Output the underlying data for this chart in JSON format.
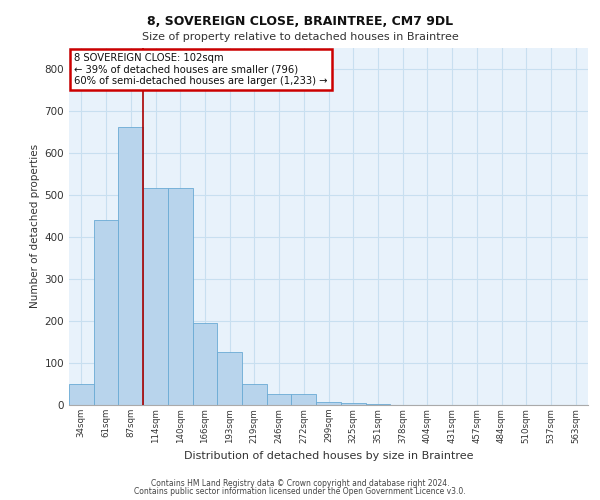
{
  "title1": "8, SOVEREIGN CLOSE, BRAINTREE, CM7 9DL",
  "title2": "Size of property relative to detached houses in Braintree",
  "xlabel": "Distribution of detached houses by size in Braintree",
  "ylabel": "Number of detached properties",
  "categories": [
    "34sqm",
    "61sqm",
    "87sqm",
    "114sqm",
    "140sqm",
    "166sqm",
    "193sqm",
    "219sqm",
    "246sqm",
    "272sqm",
    "299sqm",
    "325sqm",
    "351sqm",
    "378sqm",
    "404sqm",
    "431sqm",
    "457sqm",
    "484sqm",
    "510sqm",
    "537sqm",
    "563sqm"
  ],
  "values": [
    50,
    440,
    660,
    515,
    515,
    195,
    125,
    50,
    27,
    27,
    8,
    5,
    3,
    0,
    0,
    0,
    0,
    0,
    0,
    0,
    0
  ],
  "bar_color": "#b8d4ec",
  "bar_edge_color": "#6aaad4",
  "grid_color": "#c8dff0",
  "background_color": "#e8f2fb",
  "vline_x": 2.5,
  "vline_color": "#aa0000",
  "annotation_text": "8 SOVEREIGN CLOSE: 102sqm\n← 39% of detached houses are smaller (796)\n60% of semi-detached houses are larger (1,233) →",
  "annotation_box_color": "#ffffff",
  "annotation_box_edge_color": "#cc0000",
  "footer1": "Contains HM Land Registry data © Crown copyright and database right 2024.",
  "footer2": "Contains public sector information licensed under the Open Government Licence v3.0.",
  "ylim": [
    0,
    850
  ],
  "yticks": [
    0,
    100,
    200,
    300,
    400,
    500,
    600,
    700,
    800
  ]
}
